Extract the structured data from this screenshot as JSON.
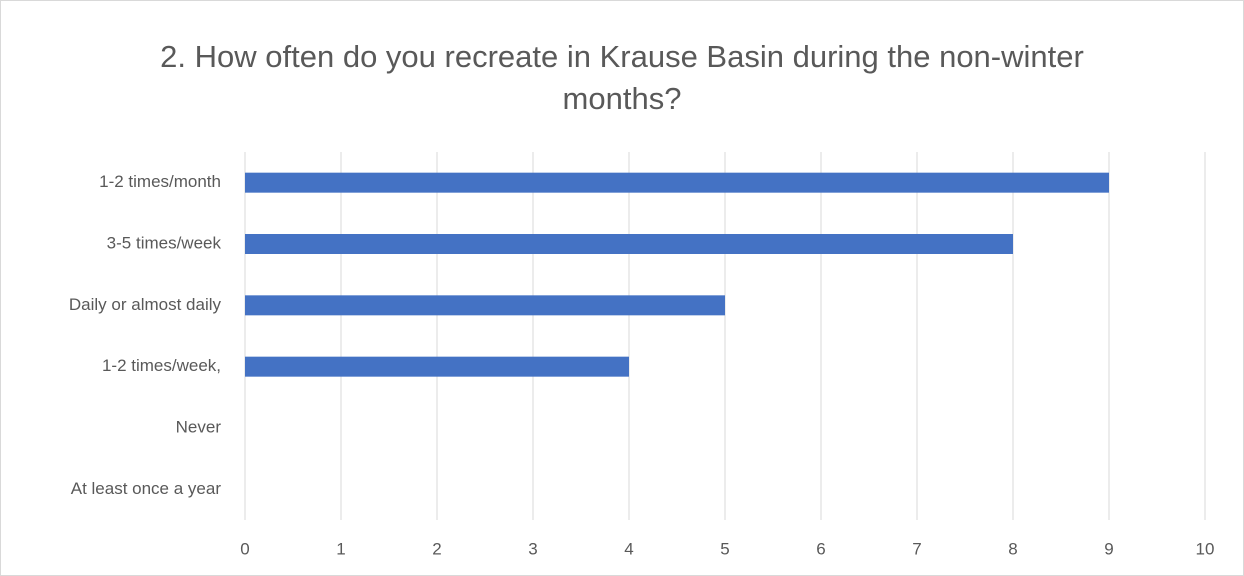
{
  "chart_data": {
    "type": "bar",
    "orientation": "horizontal",
    "title": "2.   How often do you recreate in Krause Basin during the non-winter months?",
    "categories": [
      "1-2 times/month",
      "3-5 times/week",
      "Daily or almost daily",
      "1-2 times/week,",
      "Never",
      "At least once a year"
    ],
    "values": [
      9,
      8,
      5,
      4,
      0,
      0
    ],
    "color": "#4472c4",
    "xlim": [
      0,
      10
    ],
    "xticks": [
      0,
      1,
      2,
      3,
      4,
      5,
      6,
      7,
      8,
      9,
      10
    ],
    "grid": true
  }
}
